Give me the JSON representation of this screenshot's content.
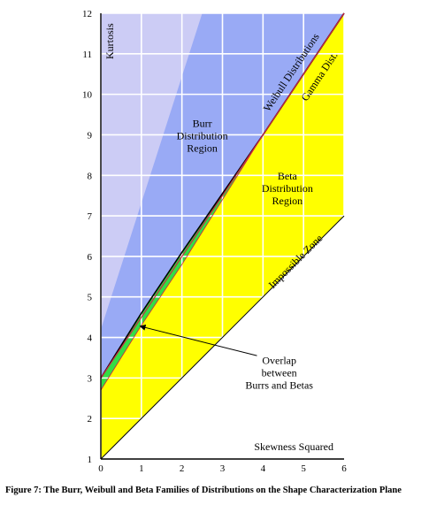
{
  "chart_data": {
    "type": "area",
    "xlabel": "Skewness Squared",
    "ylabel": "Kurtosis",
    "xlim": [
      0,
      6
    ],
    "ylim": [
      1,
      12
    ],
    "x_ticks": [
      "0",
      "1",
      "2",
      "3",
      "4",
      "5",
      "6"
    ],
    "y_ticks": [
      "1",
      "2",
      "3",
      "4",
      "5",
      "6",
      "7",
      "8",
      "9",
      "10",
      "11",
      "12"
    ],
    "grid": true,
    "colors": {
      "lavender": "#ccccf5",
      "burr": "#99aaf5",
      "overlap": "#33dd44",
      "beta": "#ffff00",
      "impossible": "#ffffff",
      "gamma_line": "#cc2244"
    },
    "regions": {
      "burr_label": [
        "Burr",
        "Distribution",
        "Region"
      ],
      "beta_label": [
        "Beta",
        "Distribution",
        "Region"
      ],
      "overlap_label": [
        "Overlap",
        "between",
        "Burrs and Betas"
      ],
      "impossible_label": "Impossible Zone",
      "weibull_label": "Weibull Distributions",
      "gamma_label": "Gamma Dist."
    },
    "boundaries": {
      "impossible": [
        [
          0,
          1
        ],
        [
          6,
          7
        ]
      ],
      "gamma": [
        [
          0,
          3
        ],
        [
          6,
          12
        ]
      ],
      "beta_upper": [
        [
          0,
          2.7
        ],
        [
          1,
          4.3
        ],
        [
          2,
          5.8
        ],
        [
          4,
          9
        ],
        [
          6,
          12
        ]
      ],
      "burr_lower": [
        [
          0,
          3.0
        ],
        [
          1,
          4.6
        ],
        [
          2,
          6.1
        ],
        [
          4,
          9
        ],
        [
          6,
          12
        ]
      ],
      "burr_upper": [
        [
          0,
          4.2
        ],
        [
          2.5,
          12
        ]
      ]
    },
    "overlap_arrow_point": [
      0.9,
      4.3
    ]
  },
  "caption": "Figure 7:  The Burr, Weibull and Beta Families of Distributions on the Shape Characterization Plane"
}
